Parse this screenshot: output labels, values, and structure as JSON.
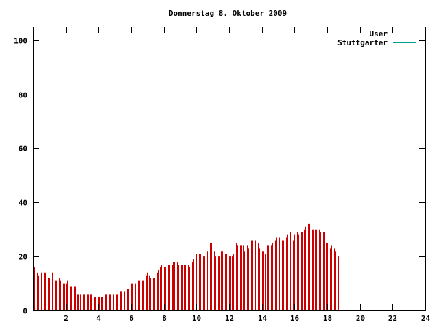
{
  "chart_data": {
    "type": "bar",
    "title": "Donnerstag 8. Oktober 2009",
    "xlabel": "",
    "ylabel": "",
    "xlim": [
      0,
      24
    ],
    "ylim": [
      0,
      105
    ],
    "x_ticks": [
      "2",
      "4",
      "6",
      "8",
      "10",
      "12",
      "14",
      "16",
      "18",
      "20",
      "22",
      "24"
    ],
    "y_ticks": [
      "0",
      "20",
      "40",
      "60",
      "80",
      "100"
    ],
    "grid": false,
    "legend_position": "top-right",
    "series": [
      {
        "name": "User",
        "color": "#cc0000",
        "sample_interval_hours": 0.0833,
        "values": [
          17,
          16,
          16,
          14,
          13,
          14,
          14,
          14,
          14,
          14,
          12,
          12,
          12,
          13,
          14,
          14,
          11,
          11,
          11,
          12,
          11,
          11,
          10,
          10,
          10,
          11,
          9,
          9,
          9,
          9,
          9,
          9,
          6,
          6,
          6,
          6,
          6,
          6,
          6,
          6,
          6,
          6,
          6,
          6,
          5,
          5,
          5,
          5,
          5,
          5,
          5,
          5,
          5,
          6,
          6,
          6,
          6,
          6,
          6,
          6,
          6,
          6,
          6,
          6,
          7,
          7,
          7,
          7,
          8,
          8,
          8,
          10,
          10,
          10,
          10,
          10,
          10,
          11,
          11,
          11,
          11,
          11,
          11,
          13,
          14,
          13,
          12,
          12,
          12,
          12,
          12,
          14,
          15,
          16,
          17,
          16,
          16,
          16,
          16,
          17,
          17,
          17,
          17,
          18,
          18,
          18,
          18,
          17,
          17,
          17,
          17,
          17,
          17,
          16,
          17,
          16,
          17,
          18,
          19,
          21,
          21,
          20,
          21,
          21,
          20,
          20,
          20,
          20,
          22,
          24,
          25,
          25,
          24,
          22,
          20,
          19,
          20,
          20,
          22,
          22,
          22,
          21,
          21,
          20,
          20,
          20,
          20,
          21,
          23,
          25,
          24,
          24,
          24,
          24,
          24,
          22,
          23,
          24,
          23,
          25,
          26,
          26,
          26,
          26,
          25,
          25,
          23,
          22,
          22,
          22,
          20,
          21,
          24,
          24,
          24,
          24,
          25,
          25,
          26,
          27,
          26,
          27,
          26,
          26,
          26,
          27,
          27,
          28,
          27,
          29,
          26,
          26,
          28,
          28,
          29,
          28,
          30,
          29,
          29,
          30,
          31,
          31,
          32,
          32,
          31,
          30,
          30,
          30,
          30,
          30,
          30,
          29,
          29,
          29,
          29,
          25,
          25,
          23,
          23,
          24,
          26,
          23,
          22,
          21,
          20,
          20
        ]
      },
      {
        "name": "Stuttgarter",
        "color": "#00a090",
        "values": []
      }
    ]
  }
}
